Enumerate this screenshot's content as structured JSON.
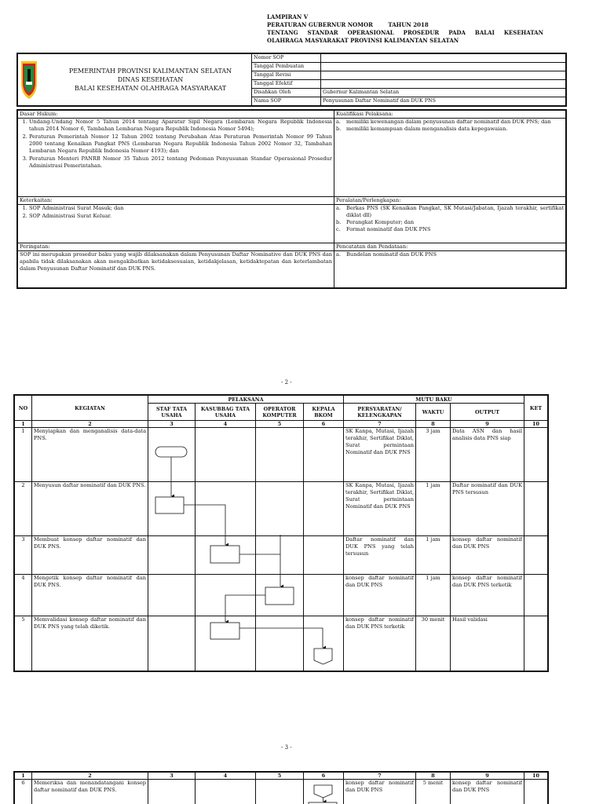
{
  "header": {
    "lines": [
      "LAMPIRAN V",
      "PERATURAN GUBERNUR NOMOR        TAHUN 2018",
      "TENTANG STANDAR OPERASIONAL PROSEDUR PADA BALAI KESEHATAN",
      "OLAHRAGA MASYARAKAT PROVINSI KALIMANTAN SELATAN"
    ]
  },
  "identity": {
    "institution": [
      "PEMERINTAH PROVINSI KALIMANTAN SELATAN",
      "DINAS KESEHATAN",
      "BALAI KESEHATAN OLAHRAGA MASYARAKAT"
    ],
    "fields": [
      {
        "label": "Nomor SOP",
        "value": ""
      },
      {
        "label": "Tanggal Pembuatan",
        "value": ""
      },
      {
        "label": "Tanggal Revisi",
        "value": ""
      },
      {
        "label": "Tanggal Efektif",
        "value": ""
      },
      {
        "label": "Disahkan Oleh",
        "value": "Gubernur Kalimantan Selatan"
      },
      {
        "label": "Nama SOP",
        "value": "Penyusunan Daftar Nominatif dan DUK PNS"
      }
    ]
  },
  "info": {
    "dasar_hukum": {
      "title": "Dasar Hukum:",
      "items": [
        "Undang-Undang Nomor 5 Tahun 2014 tentang Aparatur Sipil Negara (Lembaran Negara Republik Indonesia tahun 2014 Nomor 6, Tambahan Lembaran Negara Republik Indonesia Nomor 5494);",
        "Peraturan Pemerintah Nomor 12 Tahun 2002 tentang Perubahan Atas Peraturan Pemerintah Nomor 99 Tahun 2000 tentang Kenaikan Pangkat PNS (Lembaran Negara Republik Indonesia Tahun 2002 Nomor 32, Tambahan Lembaran Negara Republik Indonesia Nomor 4193); dan",
        "Peraturan Menteri PANRB Nomor 35 Tahun 2012 tentang Pedoman Penyusunan Standar Operasional Prosedur Administrasi Pemerintahan."
      ]
    },
    "kualifikasi": {
      "title": "Kualifikasi Pelaksana:",
      "items": [
        {
          "key": "a.",
          "text": "memiliki kewenangan dalam penyusunan daftar nominatif dan DUK PNS; dan"
        },
        {
          "key": "b.",
          "text": "memiliki kemampuan dalam menganalisis data kepegawaian."
        }
      ]
    },
    "keterkaitan": {
      "title": "Keterkaitan:",
      "items": [
        "SOP Administrasi Surat Masuk; dan",
        "SOP Administrasi Surat Keluar."
      ]
    },
    "peralatan": {
      "title": "Peralatan/Perlengkapan:",
      "items": [
        {
          "key": "a.",
          "text": "Berkas PNS (SK Kenaikan Pangkat, SK Mutasi/Jabatan, Ijazah terakhir, sertifikat diklat dll)"
        },
        {
          "key": "b.",
          "text": "Perangkat Komputer; dan"
        },
        {
          "key": "c.",
          "text": "Format nominatif dan DUK PNS"
        }
      ]
    },
    "peringatan": {
      "title": "Peringatan:",
      "text": "SOP ini merupakan prosedur baku yang wajib dilaksanakan dalam Penyusunan Daftar Nominative dan DUK PNS dan apabila tidak dilaksanakan akan mengakibatkan ketidaksesuaian, ketidakjelasan, ketidaktepatan dan keterlambatan dalam Penyusunan Daftar Nominatif dan DUK PNS."
    },
    "pencatatan": {
      "title": "Pencatatan dan Pendataan:",
      "items": [
        {
          "key": "a.",
          "text": "Bundelan nominatif dan DUK PNS"
        }
      ]
    }
  },
  "page2": {
    "page_number": "- 2 -",
    "headers": {
      "no": "NO",
      "kegiatan": "KEGIATAN",
      "pelaksana": "PELAKSANA",
      "mutu_baku": "MUTU BAKU",
      "ket": "KET",
      "actors": [
        "STAF TATA USAHA",
        "KASUBBAG TATA USAHA",
        "OPERATOR KOMPUTER",
        "KEPALA BKOM"
      ],
      "persyaratan": "PERSYARATAN/ KELENGKAPAN",
      "waktu": "WAKTU",
      "output": "OUTPUT",
      "numbers": [
        "1",
        "2",
        "3",
        "4",
        "5",
        "6",
        "7",
        "8",
        "9",
        "10"
      ]
    },
    "rows": [
      {
        "no": "1",
        "kegiatan": "Menyiapkan dan menganalisis data-data PNS.",
        "persyaratan": "SK Kanpa, Mutasi, Ijazah terakhir, Sertifikat Diklat, Surat permintaan Nominatif dan DUK PNS",
        "waktu": "3 jam",
        "output": "Data ASN dan hasil analisis data PNS siap",
        "ket": ""
      },
      {
        "no": "2",
        "kegiatan": "Menyusun daftar nominatif dan DUK PNS.",
        "persyaratan": "SK Kanpa, Mutasi, Ijazah terakhir, Sertifikat Diklat, Surat permintaan Nominatif dan DUK PNS",
        "waktu": "1 jam",
        "output": "Daftar nominatif dan DUK PNS tersusun",
        "ket": ""
      },
      {
        "no": "3",
        "kegiatan": "Membuat konsep daftar nominatif dan DUK PNS.",
        "persyaratan": "Daftar nominatif dan DUK PNS yang telah tersusun",
        "waktu": "1 jam",
        "output": "konsep daftar nominatif dan DUK PNS",
        "ket": ""
      },
      {
        "no": "4",
        "kegiatan": "Mengetik konsep daftar nominatif dan DUK PNS.",
        "persyaratan": "konsep daftar nominatif dan DUK PNS",
        "waktu": "1 jam",
        "output": "konsep daftar nominatif dan DUK PNS terketik",
        "ket": ""
      },
      {
        "no": "5",
        "kegiatan": "Memvalidasi konsep daftar nominatif dan DUK PNS yang telah diketik.",
        "persyaratan": "konsep daftar nominatif dan DUK PNS terketik",
        "waktu": "30 menit",
        "output": "Hasil validasi",
        "ket": ""
      }
    ]
  },
  "page3": {
    "page_number": "- 3 -",
    "rows": [
      {
        "no": "6",
        "kegiatan": "Memeriksa dan menandatangani konsep daftar nominatif dan DUK PNS.",
        "persyaratan": "konsep daftar nominatif dan DUK PNS",
        "waktu": "5 menit",
        "output": "konsep daftar nominatif dan DUK PNS",
        "ket": ""
      }
    ]
  },
  "colors": {
    "line": "#111111",
    "logo_green": "#1e8a3c",
    "logo_red": "#d0202a",
    "logo_yellow": "#f2c318"
  }
}
